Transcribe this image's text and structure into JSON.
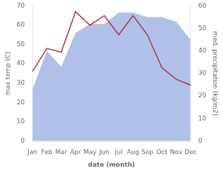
{
  "chart_data": {
    "type": "line",
    "categories": [
      "Jan",
      "Feb",
      "Mar",
      "Apr",
      "May",
      "Jun",
      "Jul",
      "Aug",
      "Sep",
      "Oct",
      "Nov",
      "Dec"
    ],
    "xlabel": "date (month)",
    "ylabel": "max temp (C)",
    "y2label": "med. precipitation (kg/m2)",
    "series": [
      {
        "type": "area",
        "axis": "y2",
        "color": "#b0c0e8",
        "values": [
          23,
          40,
          33,
          48,
          52,
          52,
          57,
          57,
          55,
          55,
          53,
          45
        ]
      },
      {
        "type": "line",
        "color": "#aa3344",
        "values": [
          36,
          48,
          46,
          67,
          60,
          65,
          55,
          65,
          55,
          38,
          32,
          29
        ]
      }
    ],
    "ylim": [
      0,
      70
    ],
    "yticks": [
      0,
      10,
      20,
      30,
      40,
      50,
      60,
      70
    ],
    "y2lim": [
      0,
      60
    ],
    "y2ticks": [
      0,
      10,
      20,
      30,
      40,
      50,
      60
    ],
    "grid": false
  }
}
